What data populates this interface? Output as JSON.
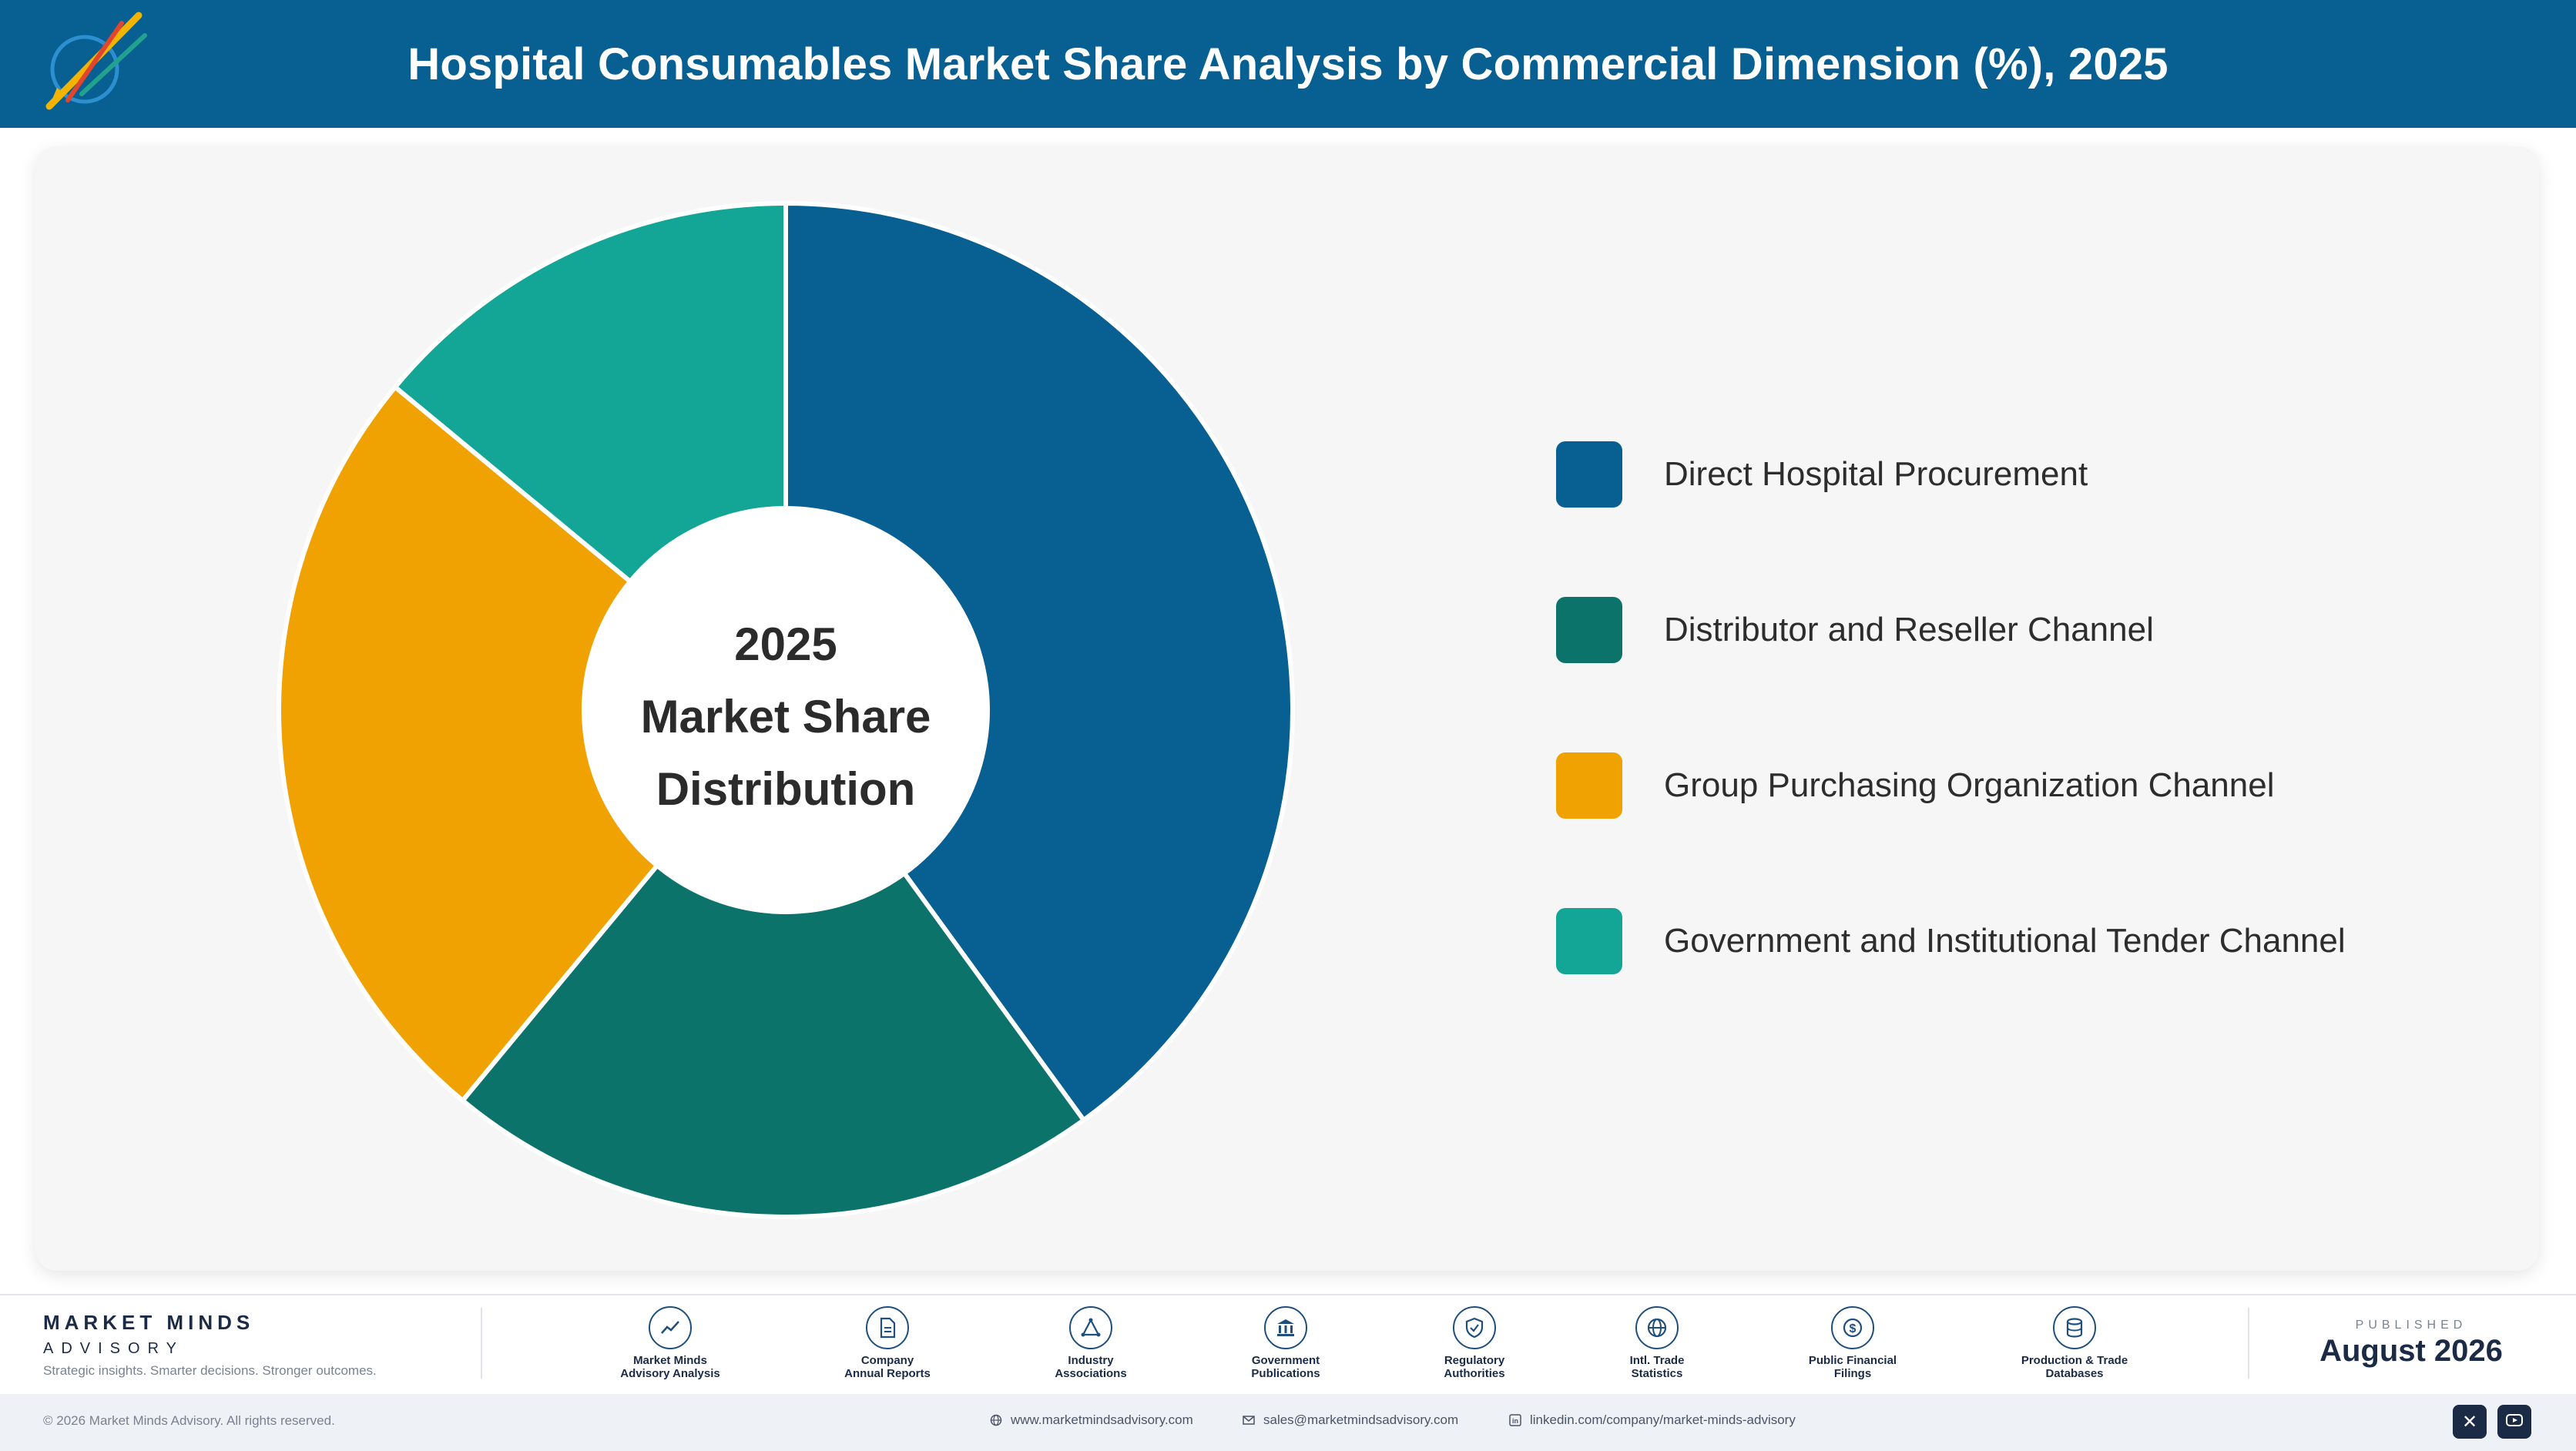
{
  "header": {
    "title": "Hospital Consumables Market Share Analysis by Commercial Dimension (%), 2025"
  },
  "colors": {
    "header_bg": "#085f91",
    "brand_dark": "#1c2b45"
  },
  "chart_data": {
    "type": "pie",
    "title": "Hospital Consumables Market Share Analysis by Commercial Dimension (%), 2025",
    "center_label": [
      "2025",
      "Market Share",
      "Distribution"
    ],
    "legend_position": "right",
    "categories": [
      "Direct Hospital Procurement",
      "Distributor and Reseller Channel",
      "Group Purchasing Organization Channel",
      "Government and Institutional Tender Channel"
    ],
    "values": [
      40,
      21,
      25,
      14
    ],
    "colors": [
      "#075f92",
      "#0c736b",
      "#f0a202",
      "#13a595"
    ]
  },
  "footer": {
    "brand_name": "MARKET MINDS",
    "brand_sub": "ADVISORY",
    "tagline": "Strategic insights. Smarter decisions. Stronger outcomes.",
    "sources": [
      {
        "label": "Market Minds\nAdvisory Analysis",
        "icon": "chart-trend-icon"
      },
      {
        "label": "Company\nAnnual Reports",
        "icon": "document-icon"
      },
      {
        "label": "Industry\nAssociations",
        "icon": "network-icon"
      },
      {
        "label": "Government\nPublications",
        "icon": "government-building-icon"
      },
      {
        "label": "Regulatory\nAuthorities",
        "icon": "shield-check-icon"
      },
      {
        "label": "Intl. Trade\nStatistics",
        "icon": "globe-icon"
      },
      {
        "label": "Public Financial\nFilings",
        "icon": "currency-coin-icon"
      },
      {
        "label": "Production & Trade\nDatabases",
        "icon": "database-icon"
      }
    ],
    "published_label": "PUBLISHED",
    "published_date": "August 2026",
    "copyright": "© 2026 Market Minds Advisory. All rights reserved.",
    "website": "www.marketmindsadvisory.com",
    "email": "sales@marketmindsadvisory.com",
    "linkedin": "linkedin.com/company/market-minds-advisory"
  }
}
